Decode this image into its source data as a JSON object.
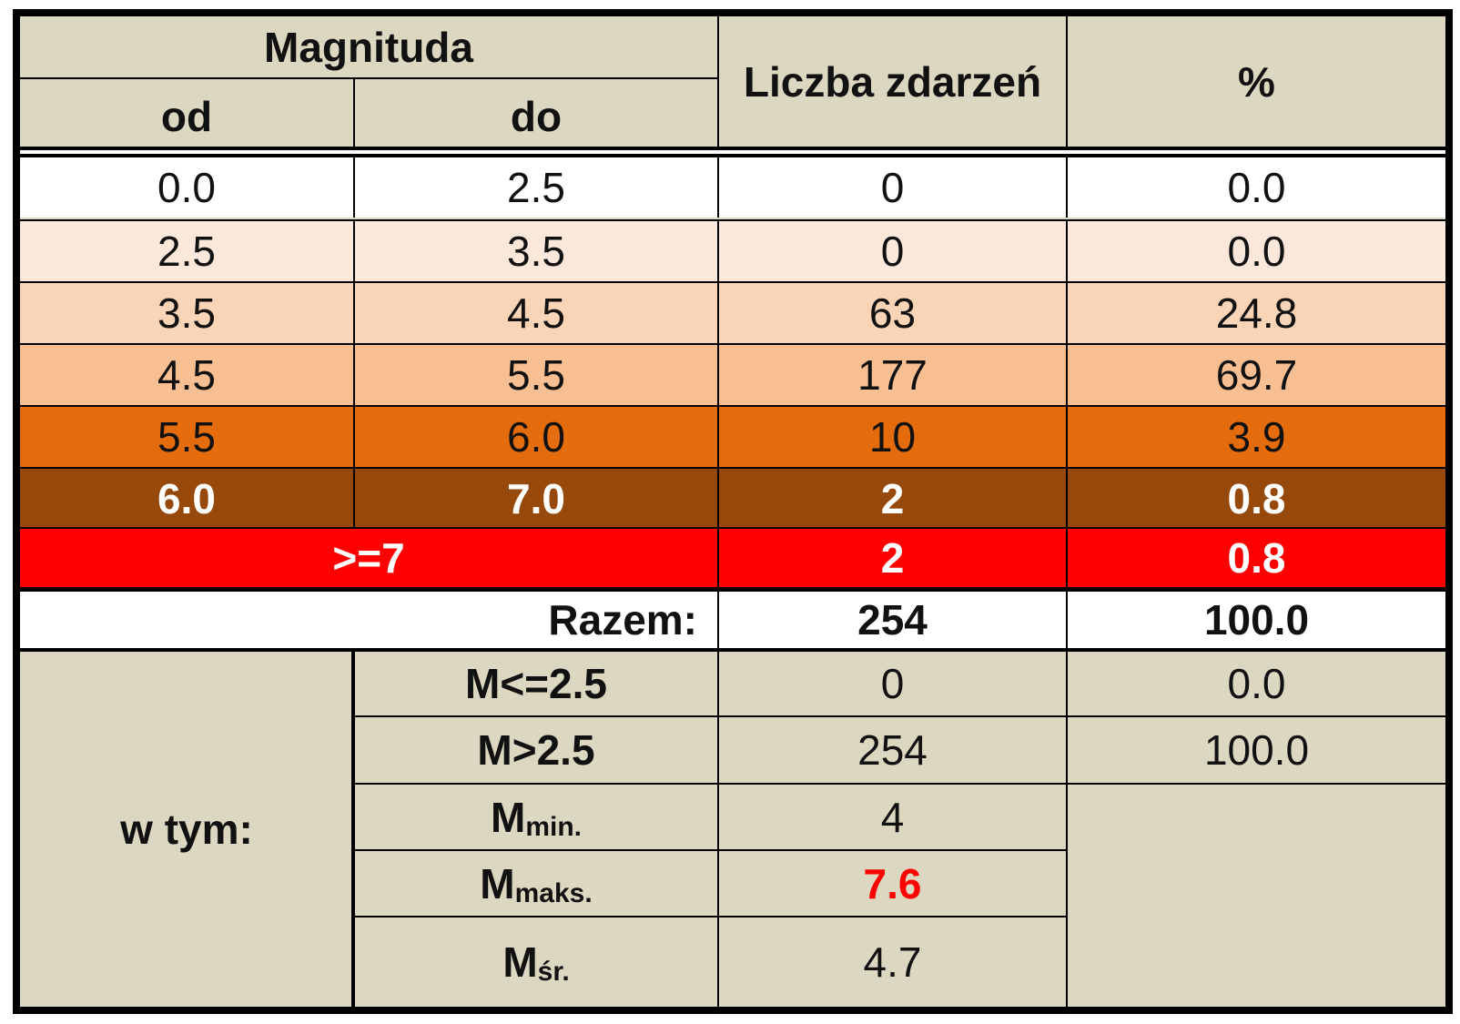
{
  "header": {
    "magnitude": "Magnituda",
    "from": "od",
    "to": "do",
    "count": "Liczba zdarzeń",
    "percent": "%"
  },
  "rows": [
    {
      "from": "0.0",
      "to": "2.5",
      "count": "0",
      "percent": "0.0",
      "bg": "#ffffff",
      "color": "#111111",
      "bold": false
    },
    {
      "from": "2.5",
      "to": "3.5",
      "count": "0",
      "percent": "0.0",
      "bg": "#fbe8db",
      "color": "#111111",
      "bold": false
    },
    {
      "from": "3.5",
      "to": "4.5",
      "count": "63",
      "percent": "24.8",
      "bg": "#f9d4b6",
      "color": "#111111",
      "bold": false
    },
    {
      "from": "4.5",
      "to": "5.5",
      "count": "177",
      "percent": "69.7",
      "bg": "#f7bf92",
      "color": "#111111",
      "bold": false
    },
    {
      "from": "5.5",
      "to": "6.0",
      "count": "10",
      "percent": "3.9",
      "bg": "#e46c0c",
      "color": "#111111",
      "bold": false
    },
    {
      "from": "6.0",
      "to": "7.0",
      "count": "2",
      "percent": "0.8",
      "bg": "#97480b",
      "color": "#ffffff",
      "bold": true
    }
  ],
  "row_ge7": {
    "label": ">=7",
    "count": "2",
    "percent": "0.8",
    "bg": "#ff0000",
    "color": "#ffffff"
  },
  "total": {
    "label": "Razem:",
    "count": "254",
    "percent": "100.0"
  },
  "including": {
    "label": "w tym:",
    "m_le": {
      "label": "M<=2.5",
      "count": "0",
      "percent": "0.0"
    },
    "m_gt": {
      "label": "M>2.5",
      "count": "254",
      "percent": "100.0"
    },
    "m_min": {
      "symbol": "M",
      "sub": "min.",
      "value": "4"
    },
    "m_max": {
      "symbol": "M",
      "sub": "maks.",
      "value": "7.6",
      "value_color": "#ff0000"
    },
    "m_avg": {
      "symbol": "M",
      "sub": "śr.",
      "value": "4.7"
    }
  }
}
